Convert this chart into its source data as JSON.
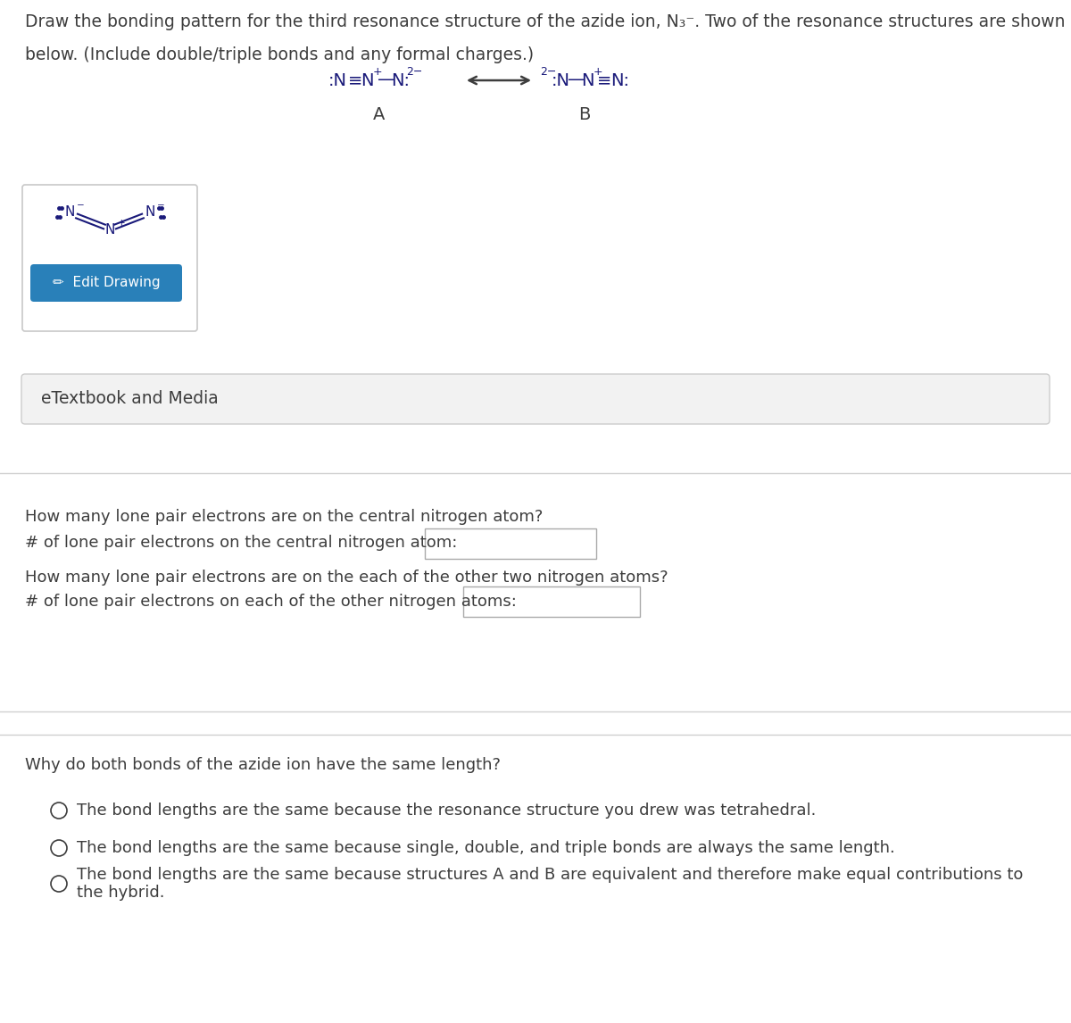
{
  "bg_color": "#ffffff",
  "text_color": "#3d3d3d",
  "title_lines": [
    "Draw the bonding pattern for the third resonance structure of the azide ion, N₃⁻. Two of the resonance structures are shown",
    "below. (Include double/triple bonds and any formal charges.)"
  ],
  "box_border": "#c8c8c8",
  "edit_button_color": "#2980b9",
  "edit_button_text": "✏  Edit Drawing",
  "edit_button_text_color": "#ffffff",
  "etextbook_text": "eTextbook and Media",
  "etextbook_bg": "#f2f2f2",
  "etextbook_border": "#cccccc",
  "q1_text": "How many lone pair electrons are on the central nitrogen atom?",
  "q1_label": "# of lone pair electrons on the central nitrogen atom:",
  "q2_text": "How many lone pair electrons are on the each of the other two nitrogen atoms?",
  "q2_label": "# of lone pair electrons on each of the other nitrogen atoms:",
  "q3_text": "Why do both bonds of the azide ion have the same length?",
  "radio_options": [
    "The bond lengths are the same because the resonance structure you drew was tetrahedral.",
    "The bond lengths are the same because single, double, and triple bonds are always the same length.",
    "The bond lengths are the same because structures A and B are equivalent and therefore make equal contributions to\nthe hybrid."
  ],
  "divider_color": "#d0d0d0",
  "molecule_color": "#1a1a7a",
  "input_box_color": "#ffffff",
  "input_box_border": "#aaaaaa"
}
